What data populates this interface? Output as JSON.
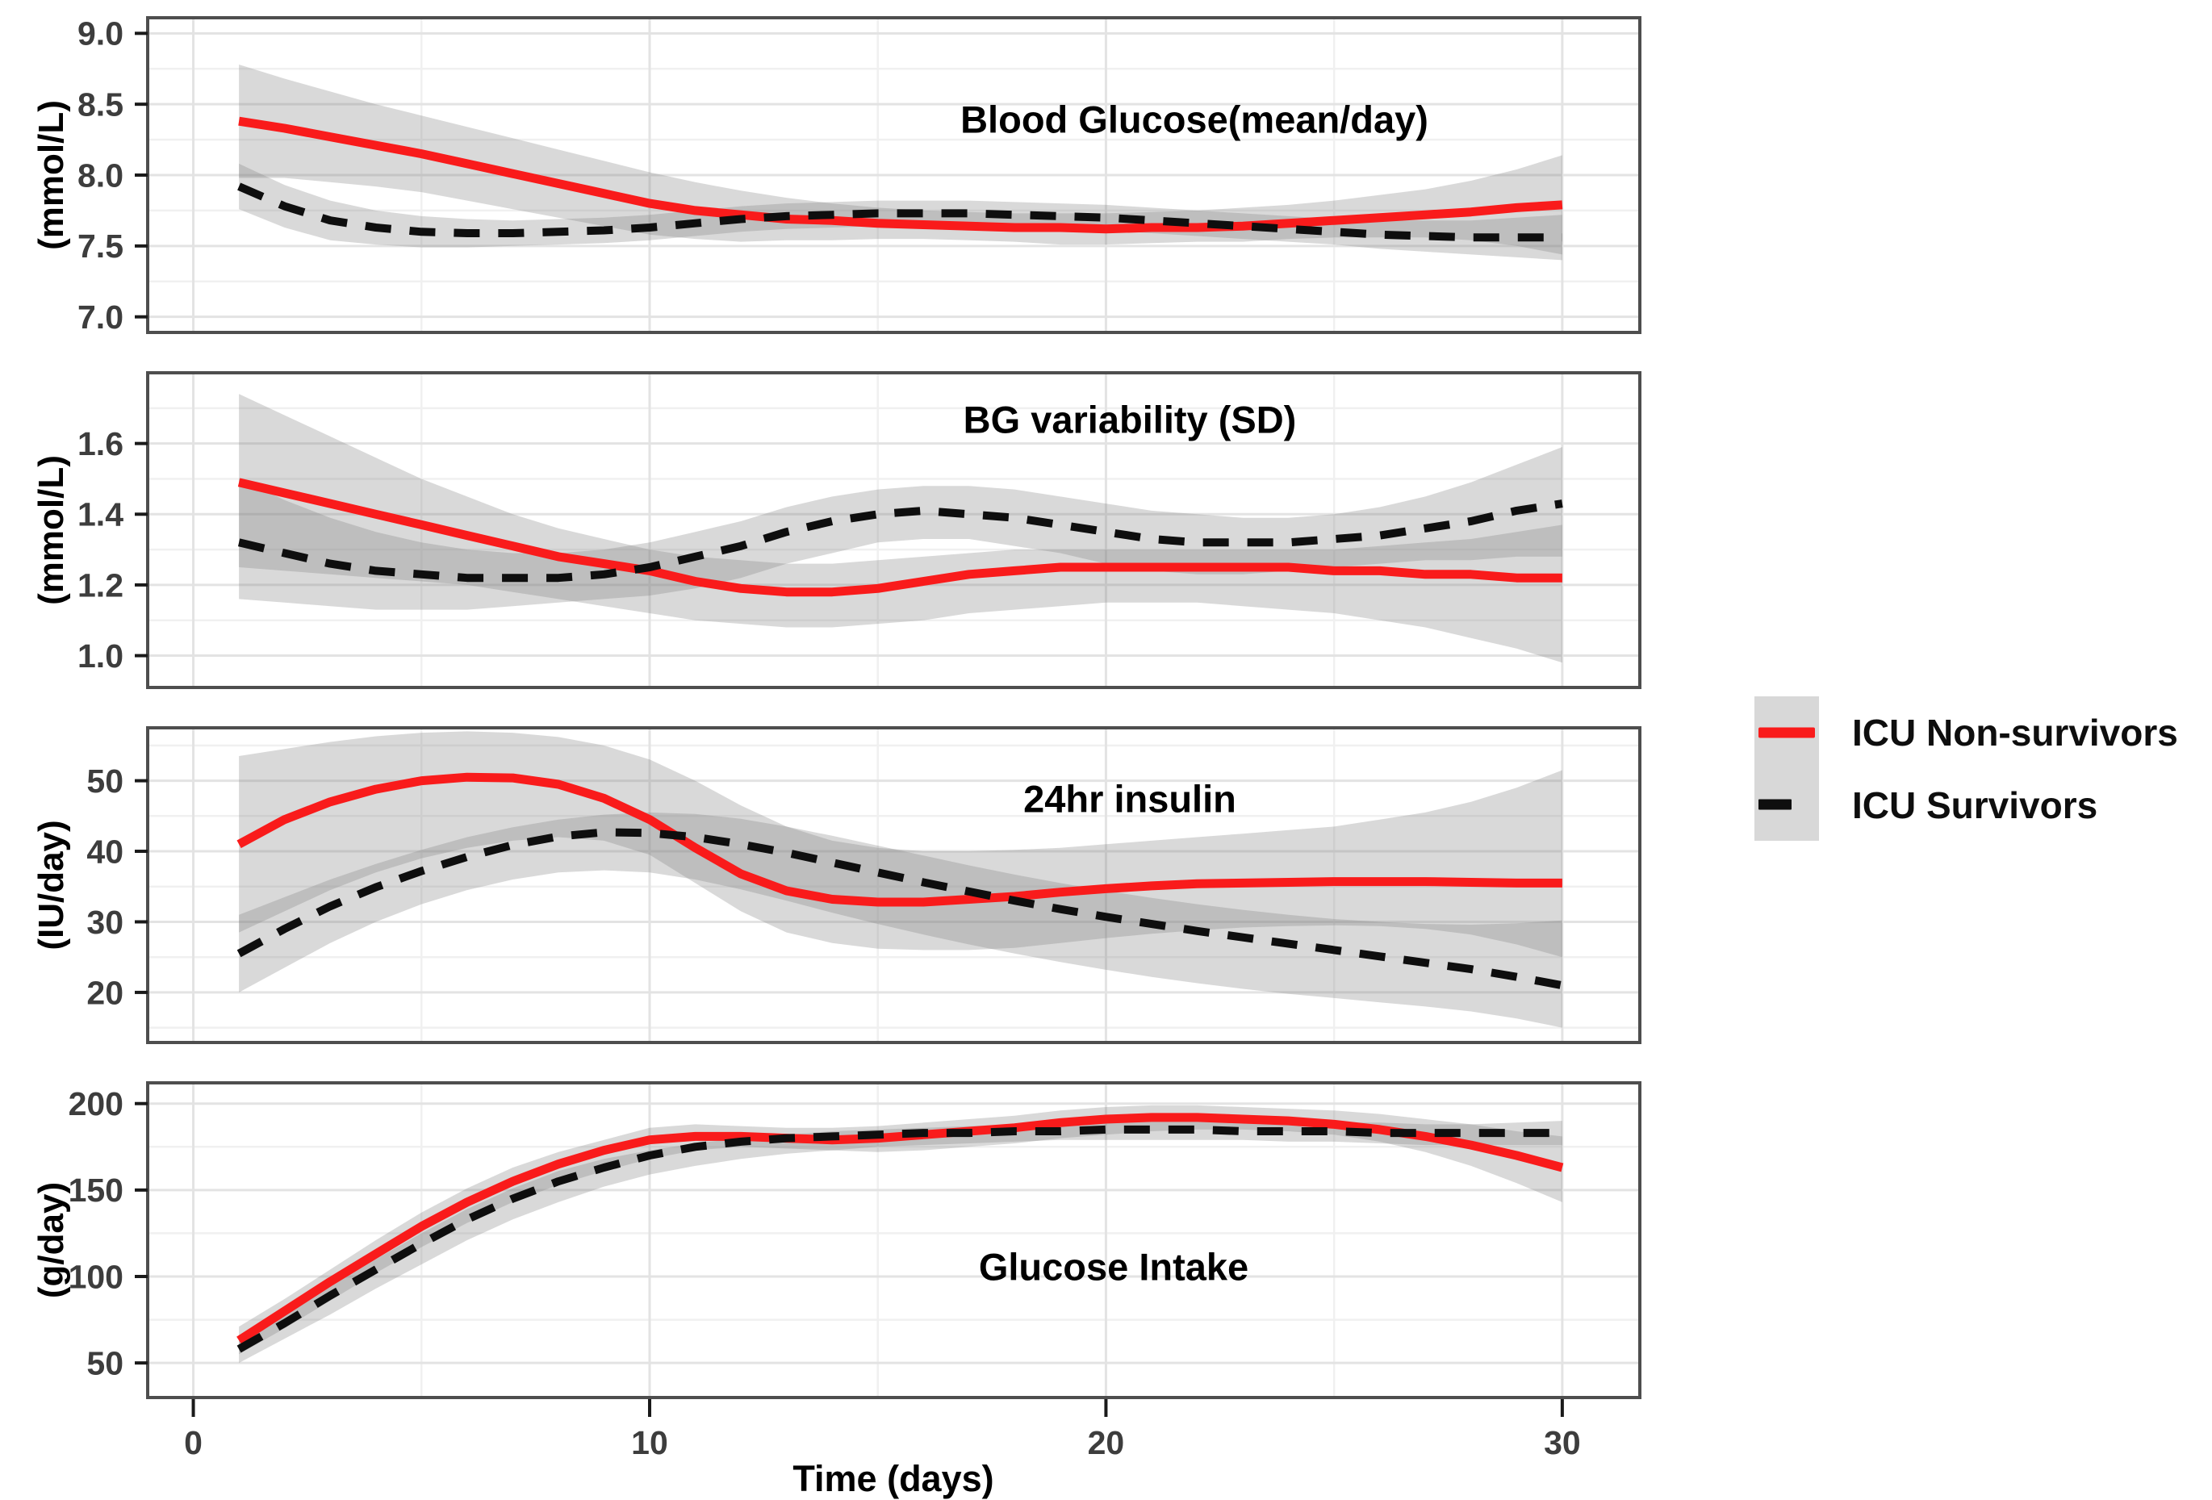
{
  "figure": {
    "background": "#ffffff",
    "kind": "four stacked smoothed time-series panels with 95% confidence ribbons (ggplot theme_bw style)"
  },
  "colors": {
    "non_survivor_line": "#f91b1b",
    "survivor_line": "#0e0e0e",
    "ribbon_fill": "#808080",
    "ribbon_opacity": 0.3,
    "grid_major": "#e3e3e3",
    "grid_minor": "#f0f0f0",
    "panel_border": "#4e4e4e",
    "axis_text": "#3d3d3d",
    "legend_key_bg": "#d8d8d8"
  },
  "legend": {
    "entries": [
      {
        "label": "ICU Non-survivors",
        "color": "#f91b1b",
        "style": "solid"
      },
      {
        "label": "ICU Survivors",
        "color": "#0e0e0e",
        "style": "dashed"
      }
    ]
  },
  "x_axis": {
    "xlim": [
      -1,
      31.7
    ],
    "ticks": [
      0,
      10,
      20,
      30
    ],
    "tick_labels": [
      "0",
      "10",
      "20",
      "30"
    ],
    "minor_ticks": [
      5,
      15,
      25
    ]
  },
  "x_days": [
    1,
    2,
    3,
    4,
    5,
    6,
    7,
    8,
    9,
    10,
    11,
    12,
    13,
    14,
    15,
    16,
    17,
    18,
    19,
    20,
    21,
    22,
    23,
    24,
    25,
    26,
    27,
    28,
    29,
    30
  ],
  "chart_data": [
    {
      "type": "line",
      "title": "Blood Glucose(mean/day)",
      "ylabel": "(mmol/L)",
      "xlabel": "",
      "ylim": [
        6.89,
        9.11
      ],
      "yticks": [
        7.0,
        7.5,
        8.0,
        8.5,
        9.0
      ],
      "ytick_labels": [
        "7.0",
        "7.5",
        "8.0",
        "8.5",
        "9.0"
      ],
      "yticks_minor": [
        7.25,
        7.75,
        8.25,
        8.75
      ],
      "series": [
        {
          "name": "ICU Non-survivors",
          "values": [
            8.38,
            8.33,
            8.27,
            8.21,
            8.15,
            8.08,
            8.01,
            7.94,
            7.87,
            7.8,
            7.75,
            7.72,
            7.69,
            7.68,
            7.66,
            7.65,
            7.64,
            7.63,
            7.63,
            7.62,
            7.63,
            7.63,
            7.64,
            7.66,
            7.68,
            7.7,
            7.72,
            7.74,
            7.77,
            7.79
          ],
          "ci_upper": [
            8.78,
            8.68,
            8.59,
            8.5,
            8.42,
            8.34,
            8.26,
            8.18,
            8.1,
            8.02,
            7.95,
            7.89,
            7.84,
            7.8,
            7.77,
            7.75,
            7.74,
            7.73,
            7.73,
            7.73,
            7.74,
            7.75,
            7.77,
            7.79,
            7.82,
            7.86,
            7.9,
            7.96,
            8.04,
            8.14
          ],
          "ci_lower": [
            7.98,
            7.98,
            7.95,
            7.92,
            7.88,
            7.82,
            7.76,
            7.7,
            7.64,
            7.58,
            7.55,
            7.53,
            7.54,
            7.54,
            7.55,
            7.55,
            7.54,
            7.53,
            7.51,
            7.51,
            7.52,
            7.53,
            7.53,
            7.55,
            7.56,
            7.56,
            7.56,
            7.54,
            7.5,
            7.44
          ]
        },
        {
          "name": "ICU Survivors",
          "values": [
            7.92,
            7.78,
            7.68,
            7.63,
            7.6,
            7.59,
            7.59,
            7.6,
            7.61,
            7.63,
            7.66,
            7.69,
            7.71,
            7.72,
            7.73,
            7.73,
            7.73,
            7.72,
            7.71,
            7.7,
            7.68,
            7.66,
            7.64,
            7.62,
            7.6,
            7.58,
            7.57,
            7.56,
            7.56,
            7.56
          ],
          "ci_upper": [
            8.08,
            7.93,
            7.82,
            7.75,
            7.71,
            7.69,
            7.68,
            7.69,
            7.7,
            7.72,
            7.75,
            7.78,
            7.8,
            7.81,
            7.82,
            7.82,
            7.82,
            7.81,
            7.8,
            7.79,
            7.77,
            7.75,
            7.73,
            7.71,
            7.69,
            7.68,
            7.68,
            7.68,
            7.7,
            7.72
          ],
          "ci_lower": [
            7.76,
            7.63,
            7.54,
            7.51,
            7.49,
            7.49,
            7.5,
            7.51,
            7.52,
            7.54,
            7.57,
            7.6,
            7.62,
            7.63,
            7.64,
            7.64,
            7.64,
            7.63,
            7.62,
            7.61,
            7.59,
            7.57,
            7.55,
            7.53,
            7.51,
            7.48,
            7.46,
            7.44,
            7.42,
            7.4
          ]
        }
      ]
    },
    {
      "type": "line",
      "title": "BG variability (SD)",
      "ylabel": "(mmol/L)",
      "xlabel": "",
      "ylim": [
        0.91,
        1.8
      ],
      "yticks": [
        1.0,
        1.2,
        1.4,
        1.6
      ],
      "ytick_labels": [
        "1.0",
        "1.2",
        "1.4",
        "1.6"
      ],
      "yticks_minor": [
        1.1,
        1.3,
        1.5,
        1.7
      ],
      "series": [
        {
          "name": "ICU Non-survivors",
          "values": [
            1.49,
            1.46,
            1.43,
            1.4,
            1.37,
            1.34,
            1.31,
            1.28,
            1.26,
            1.24,
            1.21,
            1.19,
            1.18,
            1.18,
            1.19,
            1.21,
            1.23,
            1.24,
            1.25,
            1.25,
            1.25,
            1.25,
            1.25,
            1.25,
            1.24,
            1.24,
            1.23,
            1.23,
            1.22,
            1.22
          ],
          "ci_upper": [
            1.74,
            1.68,
            1.62,
            1.56,
            1.5,
            1.45,
            1.4,
            1.36,
            1.33,
            1.3,
            1.28,
            1.27,
            1.26,
            1.26,
            1.27,
            1.28,
            1.29,
            1.3,
            1.3,
            1.3,
            1.3,
            1.3,
            1.3,
            1.3,
            1.3,
            1.31,
            1.32,
            1.33,
            1.35,
            1.37
          ],
          "ci_lower": [
            1.25,
            1.24,
            1.23,
            1.22,
            1.21,
            1.2,
            1.18,
            1.16,
            1.14,
            1.12,
            1.1,
            1.09,
            1.08,
            1.08,
            1.09,
            1.1,
            1.12,
            1.13,
            1.14,
            1.15,
            1.15,
            1.15,
            1.14,
            1.13,
            1.12,
            1.1,
            1.08,
            1.05,
            1.02,
            0.98
          ]
        },
        {
          "name": "ICU Survivors",
          "values": [
            1.32,
            1.29,
            1.26,
            1.24,
            1.23,
            1.22,
            1.22,
            1.22,
            1.23,
            1.25,
            1.28,
            1.31,
            1.35,
            1.38,
            1.4,
            1.41,
            1.4,
            1.39,
            1.37,
            1.35,
            1.33,
            1.32,
            1.32,
            1.32,
            1.33,
            1.34,
            1.36,
            1.38,
            1.41,
            1.43
          ],
          "ci_upper": [
            1.5,
            1.44,
            1.39,
            1.35,
            1.32,
            1.3,
            1.29,
            1.29,
            1.3,
            1.32,
            1.35,
            1.38,
            1.42,
            1.45,
            1.47,
            1.48,
            1.48,
            1.47,
            1.45,
            1.43,
            1.41,
            1.4,
            1.39,
            1.39,
            1.4,
            1.42,
            1.45,
            1.49,
            1.54,
            1.59
          ],
          "ci_lower": [
            1.16,
            1.15,
            1.14,
            1.13,
            1.13,
            1.13,
            1.14,
            1.15,
            1.16,
            1.17,
            1.19,
            1.22,
            1.26,
            1.29,
            1.32,
            1.33,
            1.33,
            1.31,
            1.29,
            1.26,
            1.24,
            1.23,
            1.23,
            1.24,
            1.25,
            1.26,
            1.27,
            1.27,
            1.28,
            1.28
          ]
        }
      ]
    },
    {
      "type": "line",
      "title": "24hr insulin",
      "ylabel": "(IU/day)",
      "xlabel": "",
      "ylim": [
        12.9,
        57.5
      ],
      "yticks": [
        20,
        30,
        40,
        50
      ],
      "ytick_labels": [
        "20",
        "30",
        "40",
        "50"
      ],
      "yticks_minor": [
        15,
        25,
        35,
        45,
        55
      ],
      "series": [
        {
          "name": "ICU Non-survivors",
          "values": [
            41.0,
            44.5,
            47.0,
            48.8,
            50.0,
            50.5,
            50.4,
            49.5,
            47.5,
            44.5,
            40.5,
            36.8,
            34.4,
            33.2,
            32.8,
            32.8,
            33.2,
            33.6,
            34.2,
            34.7,
            35.1,
            35.4,
            35.5,
            35.6,
            35.7,
            35.7,
            35.7,
            35.6,
            35.5,
            35.5
          ],
          "ci_upper": [
            53.5,
            54.5,
            55.5,
            56.3,
            56.8,
            57.0,
            56.8,
            56.2,
            55.0,
            53.0,
            50.0,
            46.5,
            43.5,
            41.5,
            40.5,
            40.0,
            40.0,
            40.2,
            40.5,
            41.0,
            41.5,
            42.0,
            42.5,
            43.0,
            43.5,
            44.5,
            45.5,
            47.0,
            49.0,
            51.5
          ],
          "ci_lower": [
            28.5,
            31.5,
            34.5,
            37.0,
            39.0,
            40.5,
            41.5,
            42.0,
            41.5,
            39.5,
            35.5,
            31.5,
            28.5,
            27.0,
            26.2,
            26.0,
            26.0,
            26.3,
            27.0,
            27.7,
            28.3,
            28.8,
            29.2,
            29.4,
            29.5,
            29.4,
            29.0,
            28.2,
            26.8,
            25.0
          ]
        },
        {
          "name": "ICU Survivors",
          "values": [
            25.5,
            29.0,
            32.2,
            34.9,
            37.2,
            39.2,
            40.9,
            42.1,
            42.7,
            42.6,
            42.0,
            41.0,
            39.8,
            38.4,
            37.0,
            35.6,
            34.3,
            33.0,
            31.8,
            30.7,
            29.7,
            28.7,
            27.8,
            26.9,
            26.0,
            25.1,
            24.2,
            23.3,
            22.2,
            21.0
          ],
          "ci_upper": [
            31.0,
            33.5,
            36.0,
            38.2,
            40.2,
            42.0,
            43.4,
            44.5,
            45.2,
            45.5,
            45.3,
            44.6,
            43.5,
            42.2,
            40.8,
            39.4,
            38.0,
            36.7,
            35.5,
            34.4,
            33.4,
            32.5,
            31.7,
            31.0,
            30.4,
            30.0,
            29.7,
            29.6,
            29.8,
            30.2
          ],
          "ci_lower": [
            20.0,
            23.5,
            27.0,
            30.0,
            32.5,
            34.5,
            36.0,
            37.0,
            37.3,
            37.0,
            36.0,
            34.6,
            33.0,
            31.3,
            29.7,
            28.2,
            26.8,
            25.5,
            24.3,
            23.2,
            22.2,
            21.3,
            20.5,
            19.8,
            19.2,
            18.6,
            18.0,
            17.3,
            16.3,
            15.0
          ]
        }
      ]
    },
    {
      "type": "line",
      "title": "Glucose Intake",
      "ylabel": "(g/day)",
      "xlabel": "Time (days)",
      "ylim": [
        30,
        212
      ],
      "yticks": [
        50,
        100,
        150,
        200
      ],
      "ytick_labels": [
        "50",
        "100",
        "150",
        "200"
      ],
      "yticks_minor": [
        75,
        125,
        175
      ],
      "series": [
        {
          "name": "ICU Non-survivors",
          "values": [
            63,
            80,
            97,
            113,
            129,
            143,
            155,
            165,
            173,
            179,
            181,
            181,
            180,
            179,
            180,
            182,
            184,
            186,
            189,
            191,
            192,
            192,
            191,
            190,
            188,
            185,
            181,
            176,
            170,
            163
          ],
          "ci_upper": [
            71,
            87,
            104,
            121,
            137,
            151,
            163,
            172,
            179,
            186,
            188,
            187,
            186,
            186,
            187,
            189,
            191,
            193,
            196,
            198,
            199,
            199,
            198,
            197,
            196,
            194,
            191,
            188,
            184,
            181
          ],
          "ci_lower": [
            55,
            70,
            86,
            102,
            117,
            131,
            143,
            153,
            161,
            168,
            173,
            175,
            174,
            173,
            172,
            173,
            175,
            177,
            180,
            182,
            184,
            185,
            185,
            184,
            182,
            178,
            172,
            164,
            154,
            143
          ]
        },
        {
          "name": "ICU Survivors",
          "values": [
            58,
            73,
            89,
            104,
            119,
            133,
            145,
            155,
            163,
            170,
            175,
            178,
            180,
            181,
            182,
            183,
            183,
            184,
            184,
            185,
            185,
            185,
            184,
            184,
            184,
            183,
            183,
            183,
            183,
            183
          ],
          "ci_upper": [
            64,
            79,
            94,
            110,
            125,
            139,
            151,
            161,
            168,
            173,
            177,
            180,
            182,
            184,
            185,
            186,
            187,
            188,
            189,
            190,
            190,
            190,
            190,
            190,
            189,
            189,
            188,
            188,
            189,
            190
          ],
          "ci_lower": [
            50,
            64,
            78,
            93,
            107,
            121,
            133,
            143,
            152,
            159,
            164,
            168,
            171,
            173,
            175,
            176,
            177,
            178,
            179,
            179,
            179,
            179,
            179,
            178,
            178,
            177,
            176,
            176,
            176,
            176
          ]
        }
      ]
    }
  ]
}
